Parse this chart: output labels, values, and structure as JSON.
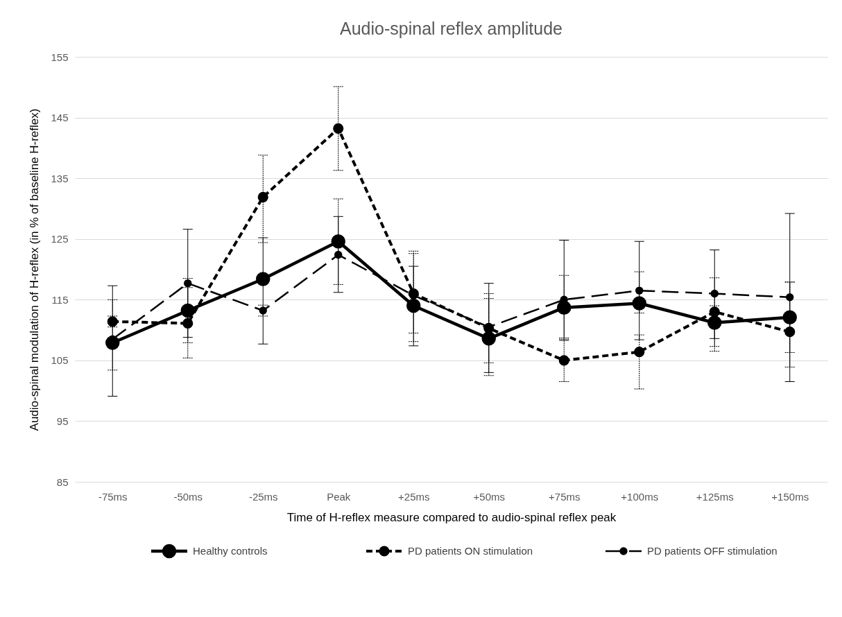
{
  "chart_data": {
    "type": "line",
    "title": "Audio-spinal reflex amplitude",
    "xlabel": "Time of H-reflex measure compared to audio-spinal reflex peak",
    "ylabel": "Audio-spinal modulation of H-reflex (in % of baseline H-reflex)",
    "categories": [
      "-75ms",
      "-50ms",
      "-25ms",
      "Peak",
      "+25ms",
      "+50ms",
      "+75ms",
      "+100ms",
      "+125ms",
      "+150ms"
    ],
    "ylim": [
      85,
      155
    ],
    "yticks": [
      85,
      95,
      105,
      115,
      125,
      135,
      145,
      155
    ],
    "grid": "y",
    "legend": "bottom",
    "marker": "circle",
    "series": [
      {
        "name": "Healthy controls",
        "color": "#000000",
        "line_style": "solid",
        "values": [
          107.9,
          113.2,
          118.4,
          124.6,
          114.0,
          108.6,
          113.7,
          114.4,
          111.2,
          112.1
        ],
        "errors": [
          [
            99.1,
            117.3
          ],
          [
            108.8,
            126.6
          ],
          [
            107.7,
            125.2
          ],
          [
            116.2,
            128.7
          ],
          [
            107.4,
            120.5
          ],
          [
            103.0,
            117.7
          ],
          [
            108.3,
            124.8
          ],
          [
            108.4,
            124.6
          ],
          [
            108.6,
            123.2
          ],
          [
            101.5,
            129.2
          ]
        ]
      },
      {
        "name": "PD patients ON stimulation",
        "color": "#000000",
        "line_style": "dashed",
        "values": [
          111.4,
          111.1,
          131.9,
          143.2,
          116.0,
          110.3,
          105.0,
          106.4,
          113.0,
          109.7
        ],
        "errors": [
          [
            110.5,
            112.3
          ],
          [
            107.9,
            117.0
          ],
          [
            124.4,
            138.8
          ],
          [
            136.3,
            150.1
          ],
          [
            109.5,
            123.0
          ],
          [
            104.6,
            116.0
          ],
          [
            101.5,
            108.5
          ],
          [
            100.3,
            109.2
          ],
          [
            106.5,
            114.0
          ],
          [
            106.3,
            117.9
          ]
        ]
      },
      {
        "name": "PD patients OFF stimulation",
        "color": "#000000",
        "line_style": "dashed",
        "values": [
          108.5,
          117.7,
          113.2,
          122.4,
          115.7,
          110.5,
          115.0,
          116.5,
          116.0,
          115.4
        ],
        "errors": [
          [
            103.4,
            115.0
          ],
          [
            105.4,
            118.5
          ],
          [
            112.3,
            114.1
          ],
          [
            117.5,
            131.6
          ],
          [
            108.1,
            122.6
          ],
          [
            102.5,
            115.2
          ],
          [
            108.7,
            119.0
          ],
          [
            112.8,
            119.6
          ],
          [
            107.3,
            118.6
          ],
          [
            103.9,
            117.9
          ]
        ]
      }
    ]
  }
}
